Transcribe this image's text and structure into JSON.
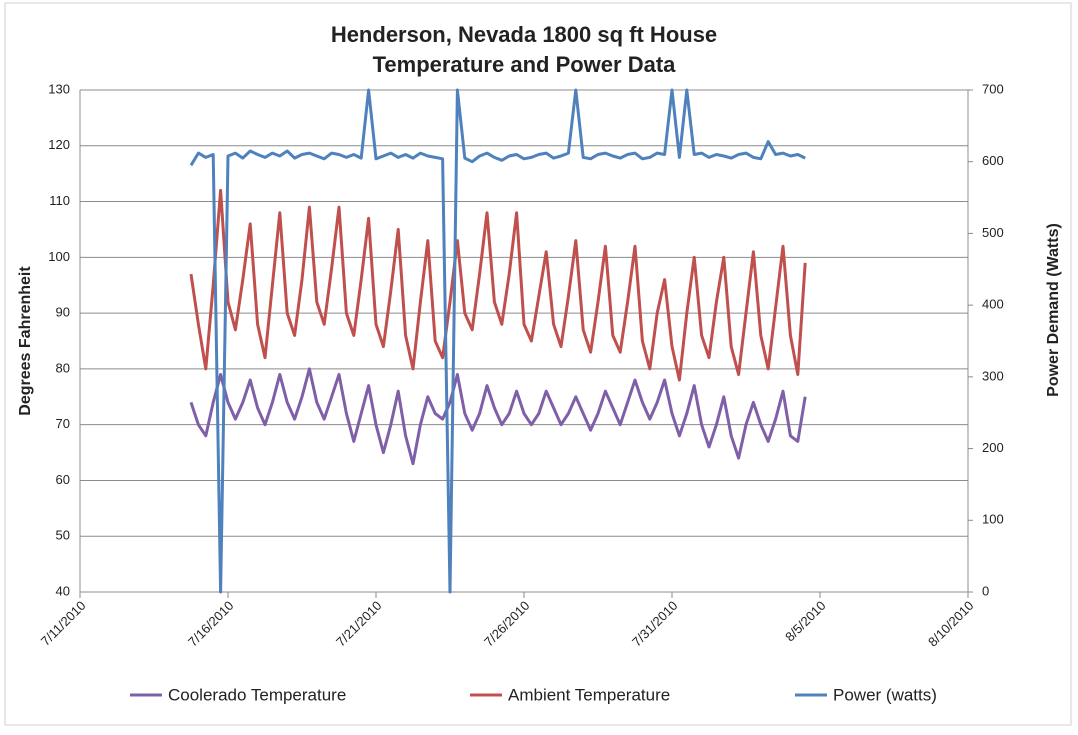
{
  "chart_data": {
    "type": "line",
    "title": [
      "Henderson, Nevada 1800 sq ft House",
      "Temperature and Power Data"
    ],
    "y_label": "Degrees Fahrenheit",
    "y2_label": "Power Demand (Watts)",
    "xlim": [
      "2010-07-11",
      "2010-08-10"
    ],
    "xticks": [
      {
        "value": "2010-07-11",
        "label": "7/11/2010"
      },
      {
        "value": "2010-07-16",
        "label": "7/16/2010"
      },
      {
        "value": "2010-07-21",
        "label": "7/21/2010"
      },
      {
        "value": "2010-07-26",
        "label": "7/26/2010"
      },
      {
        "value": "2010-07-31",
        "label": "7/31/2010"
      },
      {
        "value": "2010-08-05",
        "label": "8/5/2010"
      },
      {
        "value": "2010-08-10",
        "label": "8/10/2010"
      }
    ],
    "ylim": [
      40,
      130
    ],
    "yticks": [
      40,
      50,
      60,
      70,
      80,
      90,
      100,
      110,
      120,
      130
    ],
    "y2lim": [
      0,
      700
    ],
    "y2ticks": [
      0,
      100,
      200,
      300,
      400,
      500,
      600,
      700
    ],
    "grid": true,
    "legend": "bottom",
    "x": [
      "2010-07-14T18:00",
      "2010-07-15T00:00",
      "2010-07-15T06:00",
      "2010-07-15T12:00",
      "2010-07-15T18:00",
      "2010-07-16T00:00",
      "2010-07-16T06:00",
      "2010-07-16T12:00",
      "2010-07-16T18:00",
      "2010-07-17T00:00",
      "2010-07-17T06:00",
      "2010-07-17T12:00",
      "2010-07-17T18:00",
      "2010-07-18T00:00",
      "2010-07-18T06:00",
      "2010-07-18T12:00",
      "2010-07-18T18:00",
      "2010-07-19T00:00",
      "2010-07-19T06:00",
      "2010-07-19T12:00",
      "2010-07-19T18:00",
      "2010-07-20T00:00",
      "2010-07-20T06:00",
      "2010-07-20T12:00",
      "2010-07-20T18:00",
      "2010-07-21T00:00",
      "2010-07-21T06:00",
      "2010-07-21T12:00",
      "2010-07-21T18:00",
      "2010-07-22T00:00",
      "2010-07-22T06:00",
      "2010-07-22T12:00",
      "2010-07-22T18:00",
      "2010-07-23T00:00",
      "2010-07-23T06:00",
      "2010-07-23T12:00",
      "2010-07-23T18:00",
      "2010-07-24T00:00",
      "2010-07-24T06:00",
      "2010-07-24T12:00",
      "2010-07-24T18:00",
      "2010-07-25T00:00",
      "2010-07-25T06:00",
      "2010-07-25T12:00",
      "2010-07-25T18:00",
      "2010-07-26T00:00",
      "2010-07-26T06:00",
      "2010-07-26T12:00",
      "2010-07-26T18:00",
      "2010-07-27T00:00",
      "2010-07-27T06:00",
      "2010-07-27T12:00",
      "2010-07-27T18:00",
      "2010-07-28T00:00",
      "2010-07-28T06:00",
      "2010-07-28T12:00",
      "2010-07-28T18:00",
      "2010-07-29T00:00",
      "2010-07-29T06:00",
      "2010-07-29T12:00",
      "2010-07-29T18:00",
      "2010-07-30T00:00",
      "2010-07-30T06:00",
      "2010-07-30T12:00",
      "2010-07-30T18:00",
      "2010-07-31T00:00",
      "2010-07-31T06:00",
      "2010-07-31T12:00",
      "2010-07-31T18:00",
      "2010-08-01T00:00",
      "2010-08-01T06:00",
      "2010-08-01T12:00",
      "2010-08-01T18:00",
      "2010-08-02T00:00",
      "2010-08-02T06:00",
      "2010-08-02T12:00",
      "2010-08-02T18:00",
      "2010-08-03T00:00",
      "2010-08-03T06:00",
      "2010-08-03T12:00",
      "2010-08-03T18:00",
      "2010-08-04T00:00",
      "2010-08-04T06:00",
      "2010-08-04T12:00"
    ],
    "series": [
      {
        "name": "Coolerado Temperature",
        "color": "#7f5fa8",
        "values": [
          74,
          70,
          68,
          74,
          79,
          74,
          71,
          74,
          78,
          73,
          70,
          74,
          79,
          74,
          71,
          75,
          80,
          74,
          71,
          75,
          79,
          72,
          67,
          72,
          77,
          70,
          65,
          70,
          76,
          68,
          63,
          70,
          75,
          72,
          71,
          74,
          79,
          72,
          69,
          72,
          77,
          73,
          70,
          72,
          76,
          72,
          70,
          72,
          76,
          73,
          70,
          72,
          75,
          72,
          69,
          72,
          76,
          73,
          70,
          74,
          78,
          74,
          71,
          74,
          78,
          72,
          68,
          72,
          77,
          70,
          66,
          70,
          75,
          68,
          64,
          70,
          74,
          70,
          67,
          71,
          76,
          68,
          67,
          75
        ]
      },
      {
        "name": "Ambient Temperature",
        "color": "#c0504d",
        "values": [
          97,
          88,
          80,
          95,
          112,
          92,
          87,
          96,
          106,
          88,
          82,
          95,
          108,
          90,
          86,
          96,
          109,
          92,
          88,
          98,
          109,
          90,
          86,
          96,
          107,
          88,
          84,
          94,
          105,
          86,
          80,
          92,
          103,
          85,
          82,
          92,
          103,
          90,
          87,
          97,
          108,
          92,
          88,
          97,
          108,
          88,
          85,
          93,
          101,
          88,
          84,
          93,
          103,
          87,
          83,
          92,
          102,
          86,
          83,
          92,
          102,
          85,
          80,
          90,
          96,
          84,
          78,
          90,
          100,
          86,
          82,
          92,
          100,
          84,
          79,
          90,
          101,
          86,
          80,
          91,
          102,
          86,
          79,
          99
        ]
      },
      {
        "name": "Power (watts)",
        "color": "#4f81bd",
        "axis": "y2",
        "values": [
          595,
          612,
          606,
          610,
          0,
          608,
          612,
          605,
          615,
          610,
          606,
          612,
          608,
          615,
          605,
          610,
          612,
          608,
          604,
          612,
          610,
          606,
          610,
          605,
          700,
          604,
          608,
          612,
          606,
          610,
          605,
          612,
          608,
          606,
          604,
          0,
          700,
          605,
          600,
          608,
          612,
          606,
          602,
          608,
          610,
          604,
          606,
          610,
          612,
          605,
          608,
          612,
          700,
          606,
          604,
          610,
          612,
          608,
          605,
          610,
          612,
          604,
          606,
          612,
          610,
          700,
          606,
          700,
          610,
          612,
          606,
          610,
          608,
          605,
          610,
          612,
          606,
          604,
          628,
          610,
          612,
          608,
          610,
          605
        ]
      }
    ]
  }
}
